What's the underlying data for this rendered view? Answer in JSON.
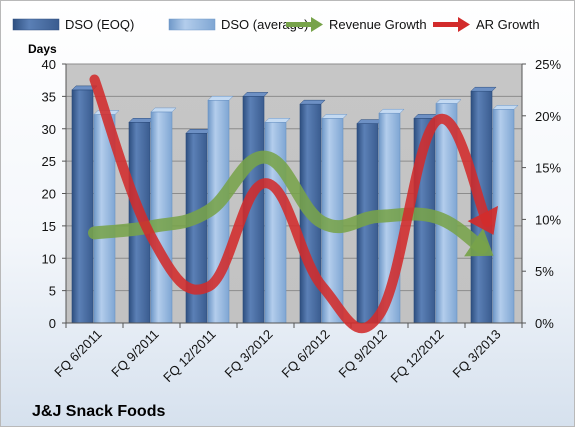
{
  "chart_data": {
    "type": "bar",
    "title": "J&J Snack Foods",
    "ylabel": "Days",
    "y2label": "",
    "categories": [
      "FQ 6/2011",
      "FQ 9/2011",
      "FQ 12/2011",
      "FQ 3/2012",
      "FQ 6/2012",
      "FQ 9/2012",
      "FQ 12/2012",
      "FQ 3/2013"
    ],
    "ylim": [
      0,
      40
    ],
    "y_ticks": [
      0,
      5,
      10,
      15,
      20,
      25,
      30,
      35,
      40
    ],
    "y2lim": [
      0,
      25
    ],
    "y2_ticks": [
      0,
      5,
      10,
      15,
      20,
      25
    ],
    "y2_tick_labels": [
      "0%",
      "5%",
      "10%",
      "15%",
      "20%",
      "25%"
    ],
    "grid": "horizontal",
    "legend_position": "top",
    "series": [
      {
        "name": "DSO (EOQ)",
        "type": "bar",
        "axis": "left",
        "color": "#4a6fa5",
        "values": [
          36,
          31,
          29.3,
          35,
          33.8,
          30.8,
          31.6,
          35.8
        ]
      },
      {
        "name": "DSO (average)",
        "type": "bar",
        "axis": "left",
        "color": "#8fb4de",
        "values": [
          32.2,
          32.6,
          34.4,
          31,
          31.6,
          32.4,
          33.9,
          33
        ]
      },
      {
        "name": "Revenue Growth",
        "type": "line",
        "axis": "right",
        "unit": "%",
        "color": "#77a34a",
        "values": [
          8.7,
          9.3,
          10.8,
          16,
          9.7,
          10.3,
          10.2,
          6.5
        ]
      },
      {
        "name": "AR Growth",
        "type": "line",
        "axis": "right",
        "unit": "%",
        "color": "#d22b2b",
        "values": [
          23.5,
          8.3,
          3.5,
          13.5,
          3.5,
          0.8,
          19.5,
          8.5
        ]
      }
    ]
  }
}
